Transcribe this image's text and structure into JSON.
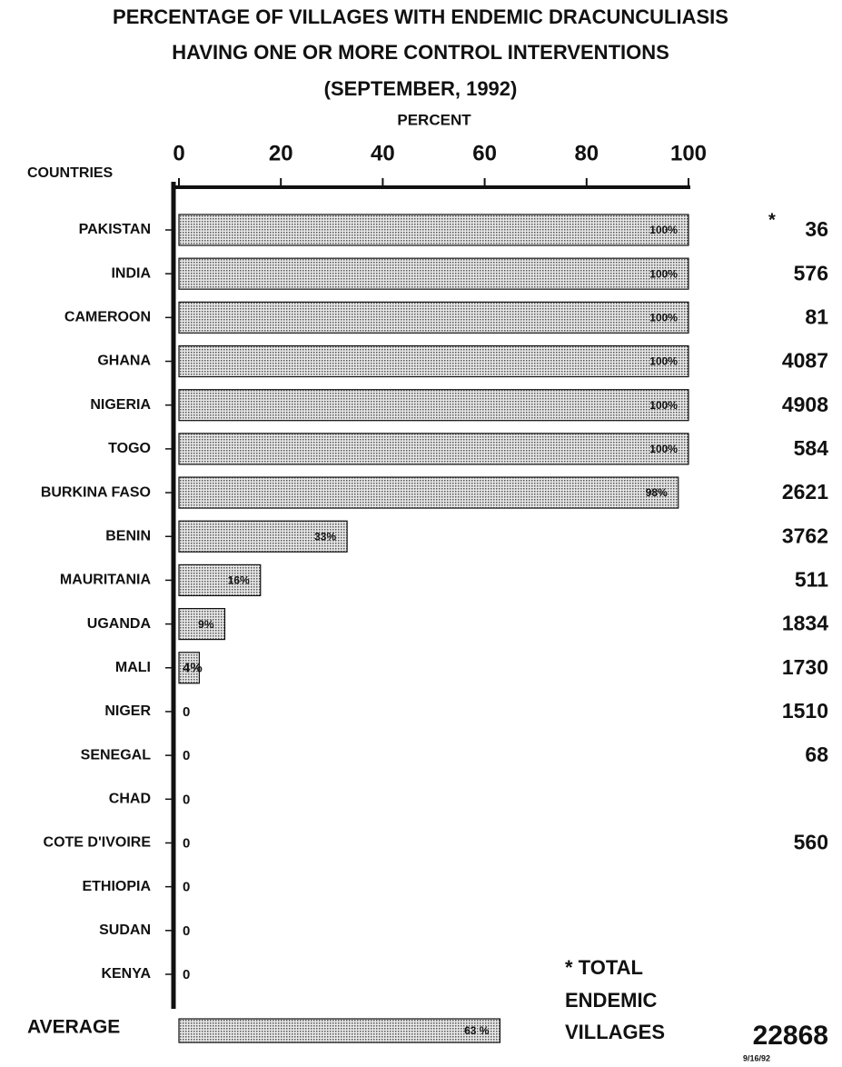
{
  "chart_data": {
    "type": "hbar",
    "title_lines": [
      "PERCENTAGE OF VILLAGES WITH ENDEMIC DRACUNCULIASIS",
      "HAVING ONE OR MORE CONTROL INTERVENTIONS",
      "(SEPTEMBER, 1992)"
    ],
    "x_axis_label": "PERCENT",
    "category_axis_label": "COUNTRIES",
    "categories": [
      "PAKISTAN",
      "INDIA",
      "CAMEROON",
      "GHANA",
      "NIGERIA",
      "TOGO",
      "BURKINA FASO",
      "BENIN",
      "MAURITANIA",
      "UGANDA",
      "MALI",
      "NIGER",
      "SENEGAL",
      "CHAD",
      "COTE D'IVOIRE",
      "ETHIOPIA",
      "SUDAN",
      "KENYA"
    ],
    "values": [
      100,
      100,
      100,
      100,
      100,
      100,
      98,
      33,
      16,
      9,
      4,
      0,
      0,
      0,
      0,
      0,
      0,
      0
    ],
    "value_labels": [
      "100%",
      "100%",
      "100%",
      "100%",
      "100%",
      "100%",
      "98%",
      "33%",
      "16%",
      "9%",
      "4%",
      "0",
      "0",
      "0",
      "0",
      "0",
      "0",
      "0"
    ],
    "color": "#c4c4c4",
    "xlim": [
      0,
      100
    ],
    "xticks": [
      0,
      20,
      40,
      60,
      80,
      100
    ],
    "endemic_villages": [
      36,
      576,
      81,
      4087,
      4908,
      584,
      2621,
      3762,
      511,
      1834,
      1730,
      1510,
      68,
      null,
      560,
      null,
      null,
      null
    ],
    "footnote_mark": "*",
    "average_label": "AVERAGE",
    "average_value": 63,
    "average_value_label": "63 %",
    "total_label_lines": [
      "* TOTAL",
      "ENDEMIC",
      "VILLAGES"
    ],
    "total_endemic_villages": 22868,
    "date": "9/16/92"
  }
}
